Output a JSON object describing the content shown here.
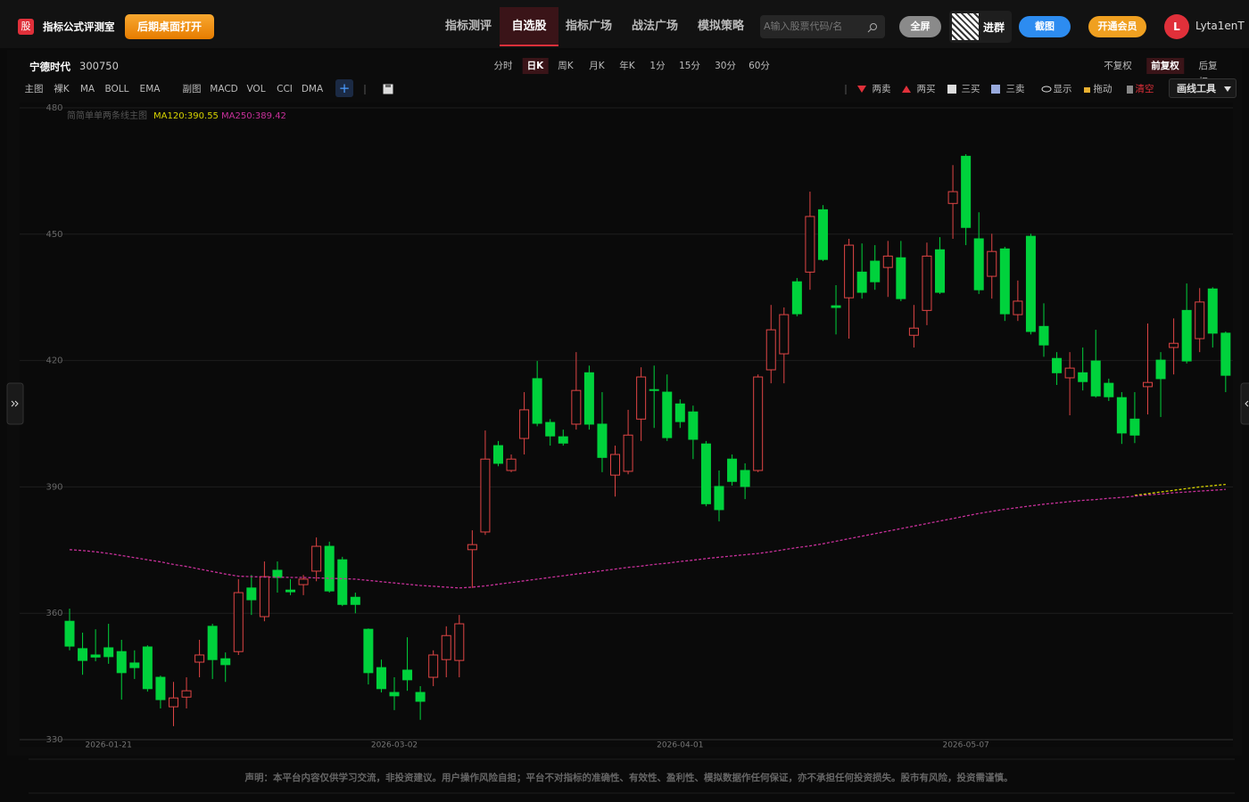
{
  "header": {
    "logo": "股",
    "brand": "指标公式评测室",
    "open_desktop": "后期桌面打开",
    "nav": [
      "指标测评",
      "自选股",
      "指标广场",
      "战法广场",
      "模拟策略"
    ],
    "active_nav": 1,
    "search_placeholder": "A输入股票代码/名",
    "fullscreen": "全屏",
    "group": "进群",
    "screenshot": "截图",
    "vip": "开通会员",
    "avatar": "L",
    "user": "Lyta1enT"
  },
  "stock_bar": {
    "name": "宁德时代",
    "code": "300750",
    "periods": [
      "分时",
      "日K",
      "周K",
      "月K",
      "年K",
      "1分",
      "15分",
      "30分",
      "60分"
    ],
    "active_period": 1,
    "adjust": [
      "不复权",
      "前复权",
      "后复权"
    ],
    "active_adjust": 1
  },
  "toolbar": {
    "main": [
      "主图",
      "裸K",
      "MA",
      "BOLL",
      "EMA"
    ],
    "sub": [
      "副图",
      "MACD",
      "VOL",
      "CCI",
      "DMA"
    ],
    "add": "+",
    "signals": [
      "两卖",
      "两买",
      "三买",
      "三卖"
    ],
    "tools": [
      "显示",
      "拖动",
      "清空"
    ],
    "draw_tool": "画线工具"
  },
  "chart_data": {
    "type": "candlestick",
    "indicator_name": "简简单单两条线主图",
    "up_color": "#e04545",
    "down_color": "#00d23c",
    "grid": true,
    "ylim": [
      330,
      480
    ],
    "yticks": [
      330,
      360,
      390,
      420,
      450,
      480
    ],
    "categories": [
      null,
      null,
      null,
      "2026-01-21",
      null,
      null,
      null,
      null,
      null,
      null,
      null,
      null,
      null,
      null,
      null,
      null,
      null,
      null,
      null,
      null,
      null,
      null,
      null,
      null,
      null,
      "2026-03-02",
      null,
      null,
      null,
      null,
      null,
      null,
      null,
      null,
      null,
      null,
      null,
      null,
      null,
      null,
      null,
      null,
      null,
      null,
      null,
      null,
      null,
      "2026-04-01",
      null,
      null,
      null,
      null,
      null,
      null,
      null,
      null,
      null,
      null,
      null,
      null,
      null,
      null,
      null,
      null,
      null,
      null,
      null,
      null,
      null,
      "2026-05-07",
      null,
      null,
      null,
      null,
      null,
      null,
      null,
      null,
      null,
      null,
      null,
      null,
      null,
      null,
      null,
      null,
      null,
      null,
      null,
      null
    ],
    "open": [
      358.1,
      351.6,
      350.1,
      351.8,
      350.9,
      348.2,
      352.0,
      344.8,
      337.8,
      340.1,
      348.4,
      356.9,
      349.2,
      350.9,
      366.0,
      359.2,
      370.2,
      365.5,
      366.8,
      370.0,
      375.9,
      372.7,
      363.8,
      356.2,
      347.1,
      341.2,
      346.5,
      341.2,
      344.8,
      349.0,
      348.8,
      375.1,
      379.3,
      399.8,
      393.9,
      401.5,
      415.7,
      405.3,
      401.9,
      404.9,
      417.1,
      404.9,
      392.8,
      393.7,
      406.1,
      413.1,
      412.5,
      409.7,
      407.8,
      400.2,
      390.1,
      396.6,
      393.9,
      393.9,
      417.8,
      421.6,
      438.7,
      441.0,
      455.8,
      433.0,
      434.9,
      441.0,
      443.6,
      442.1,
      444.4,
      426.0,
      431.9,
      446.3,
      457.3,
      468.5,
      448.9,
      440.0,
      446.5,
      430.9,
      449.5,
      428.1,
      420.5,
      415.9,
      417.1,
      419.9,
      414.6,
      411.2,
      406.1,
      413.8,
      420.1,
      423.1,
      431.9,
      425.2,
      437.0,
      426.5
    ],
    "high": [
      361.1,
      355.4,
      356.2,
      357.5,
      353.7,
      351.2,
      352.4,
      345.2,
      343.7,
      344.8,
      353.7,
      357.5,
      350.7,
      368.1,
      369.1,
      372.3,
      372.3,
      368.1,
      369.1,
      378.0,
      377.0,
      373.4,
      364.9,
      356.4,
      349.0,
      344.8,
      354.3,
      342.7,
      351.2,
      356.9,
      359.6,
      379.7,
      403.4,
      400.9,
      397.7,
      412.5,
      419.9,
      406.1,
      403.6,
      422.0,
      418.8,
      412.5,
      399.8,
      408.3,
      418.4,
      418.8,
      416.7,
      410.8,
      409.3,
      400.9,
      393.9,
      397.7,
      395.6,
      416.7,
      433.2,
      432.6,
      439.6,
      460.1,
      456.9,
      437.9,
      448.9,
      447.8,
      447.4,
      448.4,
      448.4,
      433.2,
      448.0,
      449.3,
      466.4,
      469.0,
      455.2,
      450.1,
      447.0,
      439.0,
      450.1,
      433.6,
      422.0,
      422.0,
      423.1,
      427.3,
      415.7,
      412.5,
      412.5,
      428.8,
      422.0,
      430.0,
      438.3,
      437.2,
      437.4,
      426.9
    ],
    "low": [
      351.2,
      345.4,
      348.6,
      348.0,
      339.5,
      344.4,
      341.4,
      337.4,
      333.2,
      337.4,
      344.8,
      344.4,
      343.7,
      350.1,
      359.6,
      358.1,
      364.9,
      364.3,
      364.3,
      367.6,
      364.9,
      361.7,
      360.0,
      343.1,
      341.2,
      337.0,
      341.6,
      334.7,
      342.7,
      344.8,
      344.8,
      366.0,
      378.6,
      394.9,
      393.5,
      397.7,
      404.4,
      399.8,
      399.8,
      403.6,
      403.6,
      393.5,
      387.7,
      393.0,
      400.9,
      404.0,
      400.9,
      404.0,
      396.6,
      385.4,
      381.8,
      390.3,
      387.1,
      393.5,
      414.6,
      414.6,
      430.5,
      436.8,
      443.6,
      426.2,
      425.2,
      434.7,
      436.8,
      435.1,
      434.1,
      423.1,
      428.4,
      435.8,
      448.9,
      447.4,
      435.8,
      434.7,
      429.4,
      429.4,
      426.2,
      420.9,
      414.2,
      407.0,
      412.9,
      411.2,
      410.4,
      400.2,
      400.4,
      407.2,
      406.6,
      416.7,
      419.3,
      422.0,
      423.1,
      412.5
    ],
    "close": [
      352.2,
      348.8,
      349.6,
      349.7,
      345.9,
      347.1,
      342.1,
      339.5,
      339.9,
      341.6,
      350.1,
      349.0,
      347.8,
      364.9,
      363.2,
      368.7,
      368.5,
      365.1,
      368.1,
      375.9,
      365.3,
      362.1,
      362.1,
      345.9,
      342.1,
      340.4,
      344.2,
      339.1,
      350.1,
      354.7,
      357.5,
      376.3,
      396.6,
      395.6,
      396.6,
      408.3,
      405.1,
      402.1,
      400.4,
      412.9,
      404.9,
      397.0,
      397.7,
      402.3,
      416.1,
      412.9,
      401.7,
      405.5,
      401.3,
      386.0,
      384.6,
      391.3,
      390.1,
      416.1,
      427.3,
      430.9,
      431.1,
      454.2,
      444.0,
      432.6,
      447.4,
      436.2,
      438.7,
      444.8,
      434.7,
      427.7,
      444.8,
      436.2,
      460.1,
      451.6,
      436.8,
      445.9,
      431.1,
      434.1,
      426.9,
      423.7,
      417.1,
      418.2,
      415.0,
      411.6,
      411.4,
      402.8,
      402.3,
      414.8,
      415.7,
      424.1,
      419.9,
      433.9,
      426.5,
      416.5
    ],
    "series": [
      {
        "name": "MA120:390.55",
        "color": "#d8d400",
        "values": [
          null,
          null,
          null,
          null,
          null,
          null,
          null,
          null,
          null,
          null,
          null,
          null,
          null,
          null,
          null,
          null,
          null,
          null,
          null,
          null,
          null,
          null,
          null,
          null,
          null,
          null,
          null,
          null,
          null,
          null,
          null,
          null,
          null,
          null,
          null,
          null,
          null,
          null,
          null,
          null,
          null,
          null,
          null,
          null,
          null,
          null,
          null,
          null,
          null,
          null,
          null,
          null,
          null,
          null,
          null,
          null,
          null,
          null,
          null,
          null,
          null,
          null,
          null,
          null,
          null,
          null,
          null,
          null,
          null,
          null,
          null,
          null,
          null,
          null,
          null,
          null,
          null,
          null,
          null,
          null,
          null,
          null,
          388.0,
          388.4,
          388.8,
          389.2,
          389.6,
          390.0,
          390.3,
          390.6
        ]
      },
      {
        "name": "MA250:389.42",
        "color": "#c8309a",
        "values": [
          375.1,
          374.9,
          374.6,
          374.2,
          373.7,
          373.2,
          372.7,
          372.2,
          371.6,
          371.1,
          370.5,
          369.9,
          369.3,
          368.8,
          368.7,
          368.6,
          368.6,
          368.5,
          368.5,
          368.4,
          368.3,
          368.2,
          368.1,
          367.8,
          367.5,
          367.2,
          366.9,
          366.6,
          366.4,
          366.2,
          366.0,
          366.2,
          366.5,
          366.9,
          367.3,
          367.7,
          368.1,
          368.5,
          368.9,
          369.3,
          369.7,
          370.1,
          370.5,
          370.9,
          371.2,
          371.6,
          371.9,
          372.3,
          372.6,
          373.0,
          373.3,
          373.6,
          373.9,
          374.2,
          374.6,
          375.1,
          375.6,
          376.0,
          376.5,
          377.1,
          377.7,
          378.3,
          378.9,
          379.5,
          380.1,
          380.7,
          381.3,
          381.9,
          382.5,
          383.1,
          383.7,
          384.2,
          384.7,
          385.1,
          385.5,
          385.9,
          386.2,
          386.5,
          386.8,
          387.0,
          387.3,
          387.5,
          387.8,
          388.1,
          388.3,
          388.6,
          388.8,
          389.0,
          389.2,
          389.4
        ]
      }
    ]
  },
  "footer": {
    "disclaimer": "声明：本平台内容仅供学习交流，非投资建议。用户操作风险自担；平台不对指标的准确性、有效性、盈利性、模拟数据作任何保证，亦不承担任何投资损失。股市有风险，投资需谨慎。"
  }
}
